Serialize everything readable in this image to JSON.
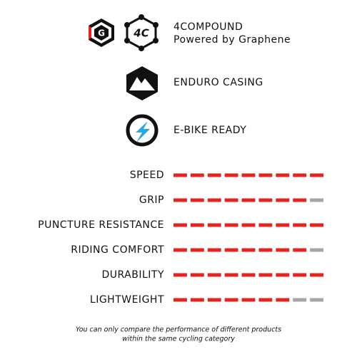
{
  "features": [
    {
      "title": "4COMPOUND",
      "subtitle": "Powered by Graphene",
      "badge": "4C",
      "badge_left": "G"
    },
    {
      "title": "ENDURO CASING"
    },
    {
      "title": "E-BIKE READY"
    }
  ],
  "chart_data": {
    "type": "rating",
    "categories": [
      "SPEED",
      "GRIP",
      "PUNCTURE RESISTANCE",
      "RIDING COMFORT",
      "DURABILITY",
      "LIGHTWEIGHT"
    ],
    "values": [
      9,
      8,
      9,
      8,
      9,
      7
    ],
    "xlim": [
      0,
      9
    ],
    "color": "#e52420",
    "track_color": "#a6a6a6"
  },
  "footnote": [
    "You can only compare the performance of different products",
    "within the same cycling category"
  ]
}
